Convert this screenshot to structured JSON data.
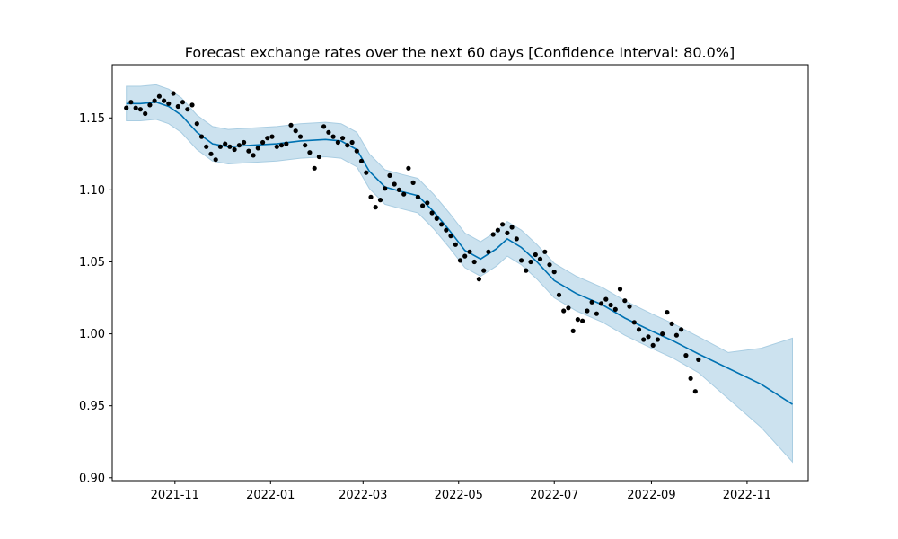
{
  "chart_data": {
    "type": "line",
    "title": "Forecast exchange rates over the next 60 days [Confidence Interval: 80.0%]",
    "xlabel": "",
    "ylabel": "",
    "x_range": [
      "2021-09-22",
      "2022-12-10"
    ],
    "ylim": [
      0.898,
      1.187
    ],
    "grid": false,
    "legend": "none",
    "x_ticks": [
      "2021-11",
      "2022-01",
      "2022-03",
      "2022-05",
      "2022-07",
      "2022-09",
      "2022-11"
    ],
    "y_ticks": [
      "0.90",
      "0.95",
      "1.00",
      "1.05",
      "1.10",
      "1.15"
    ],
    "colors": {
      "forecast_line": "#0072B2",
      "interval_fill": "#cce2ef",
      "interval_edge": "#a9cde2",
      "observed": "#000000"
    },
    "series": [
      {
        "type": "line",
        "x": [
          "2021-10-01",
          "2021-10-10",
          "2021-10-20",
          "2021-10-28",
          "2021-11-05",
          "2021-11-15",
          "2021-11-25",
          "2021-12-05",
          "2021-12-20",
          "2022-01-05",
          "2022-01-20",
          "2022-02-05",
          "2022-02-15",
          "2022-02-25",
          "2022-03-05",
          "2022-03-15",
          "2022-03-25",
          "2022-04-05",
          "2022-04-15",
          "2022-04-25",
          "2022-05-05",
          "2022-05-15",
          "2022-05-25",
          "2022-06-01",
          "2022-06-10",
          "2022-06-20",
          "2022-07-01",
          "2022-07-15",
          "2022-08-01",
          "2022-08-15",
          "2022-09-01",
          "2022-09-15",
          "2022-10-01",
          "2022-10-20",
          "2022-11-10",
          "2022-11-30"
        ],
        "y": [
          1.16,
          1.16,
          1.161,
          1.158,
          1.152,
          1.14,
          1.132,
          1.13,
          1.131,
          1.132,
          1.134,
          1.135,
          1.134,
          1.128,
          1.113,
          1.102,
          1.099,
          1.096,
          1.085,
          1.072,
          1.058,
          1.052,
          1.059,
          1.066,
          1.06,
          1.05,
          1.037,
          1.028,
          1.02,
          1.011,
          1.002,
          0.995,
          0.986,
          0.976,
          0.965,
          0.951
        ]
      },
      {
        "type": "band",
        "x": [
          "2021-10-01",
          "2021-10-10",
          "2021-10-20",
          "2021-10-28",
          "2021-11-05",
          "2021-11-15",
          "2021-11-25",
          "2021-12-05",
          "2021-12-20",
          "2022-01-05",
          "2022-01-20",
          "2022-02-05",
          "2022-02-15",
          "2022-02-25",
          "2022-03-05",
          "2022-03-15",
          "2022-03-25",
          "2022-04-05",
          "2022-04-15",
          "2022-04-25",
          "2022-05-05",
          "2022-05-15",
          "2022-05-25",
          "2022-06-01",
          "2022-06-10",
          "2022-06-20",
          "2022-07-01",
          "2022-07-15",
          "2022-08-01",
          "2022-08-15",
          "2022-09-01",
          "2022-09-15",
          "2022-10-01",
          "2022-10-20",
          "2022-11-10",
          "2022-11-30"
        ],
        "lower": [
          1.148,
          1.148,
          1.149,
          1.146,
          1.14,
          1.128,
          1.12,
          1.118,
          1.119,
          1.12,
          1.122,
          1.123,
          1.122,
          1.116,
          1.101,
          1.09,
          1.087,
          1.084,
          1.073,
          1.06,
          1.046,
          1.04,
          1.047,
          1.054,
          1.048,
          1.038,
          1.025,
          1.016,
          1.008,
          0.999,
          0.99,
          0.983,
          0.973,
          0.955,
          0.935,
          0.911
        ],
        "upper": [
          1.172,
          1.172,
          1.173,
          1.17,
          1.164,
          1.152,
          1.144,
          1.142,
          1.143,
          1.144,
          1.146,
          1.147,
          1.146,
          1.14,
          1.125,
          1.114,
          1.111,
          1.108,
          1.097,
          1.084,
          1.07,
          1.064,
          1.071,
          1.078,
          1.072,
          1.062,
          1.049,
          1.04,
          1.032,
          1.023,
          1.014,
          1.007,
          0.998,
          0.987,
          0.99,
          0.997
        ]
      },
      {
        "type": "scatter",
        "x": [
          "2021-10-01",
          "2021-10-04",
          "2021-10-07",
          "2021-10-10",
          "2021-10-13",
          "2021-10-16",
          "2021-10-19",
          "2021-10-22",
          "2021-10-25",
          "2021-10-28",
          "2021-10-31",
          "2021-11-03",
          "2021-11-06",
          "2021-11-09",
          "2021-11-12",
          "2021-11-15",
          "2021-11-18",
          "2021-11-21",
          "2021-11-24",
          "2021-11-27",
          "2021-11-30",
          "2021-12-03",
          "2021-12-06",
          "2021-12-09",
          "2021-12-12",
          "2021-12-15",
          "2021-12-18",
          "2021-12-21",
          "2021-12-24",
          "2021-12-27",
          "2021-12-30",
          "2022-01-02",
          "2022-01-05",
          "2022-01-08",
          "2022-01-11",
          "2022-01-14",
          "2022-01-17",
          "2022-01-20",
          "2022-01-23",
          "2022-01-26",
          "2022-01-29",
          "2022-02-01",
          "2022-02-04",
          "2022-02-07",
          "2022-02-10",
          "2022-02-13",
          "2022-02-16",
          "2022-02-19",
          "2022-02-22",
          "2022-02-25",
          "2022-02-28",
          "2022-03-03",
          "2022-03-06",
          "2022-03-09",
          "2022-03-12",
          "2022-03-15",
          "2022-03-18",
          "2022-03-21",
          "2022-03-24",
          "2022-03-27",
          "2022-03-30",
          "2022-04-02",
          "2022-04-05",
          "2022-04-08",
          "2022-04-11",
          "2022-04-14",
          "2022-04-17",
          "2022-04-20",
          "2022-04-23",
          "2022-04-26",
          "2022-04-29",
          "2022-05-02",
          "2022-05-05",
          "2022-05-08",
          "2022-05-11",
          "2022-05-14",
          "2022-05-17",
          "2022-05-20",
          "2022-05-23",
          "2022-05-26",
          "2022-05-29",
          "2022-06-01",
          "2022-06-04",
          "2022-06-07",
          "2022-06-10",
          "2022-06-13",
          "2022-06-16",
          "2022-06-19",
          "2022-06-22",
          "2022-06-25",
          "2022-06-28",
          "2022-07-01",
          "2022-07-04",
          "2022-07-07",
          "2022-07-10",
          "2022-07-13",
          "2022-07-16",
          "2022-07-19",
          "2022-07-22",
          "2022-07-25",
          "2022-07-28",
          "2022-07-31",
          "2022-08-03",
          "2022-08-06",
          "2022-08-09",
          "2022-08-12",
          "2022-08-15",
          "2022-08-18",
          "2022-08-21",
          "2022-08-24",
          "2022-08-27",
          "2022-08-30",
          "2022-09-02",
          "2022-09-05",
          "2022-09-08",
          "2022-09-11",
          "2022-09-14",
          "2022-09-17",
          "2022-09-20",
          "2022-09-23",
          "2022-09-26",
          "2022-09-29",
          "2022-10-01"
        ],
        "y": [
          1.157,
          1.161,
          1.157,
          1.156,
          1.153,
          1.159,
          1.162,
          1.165,
          1.162,
          1.16,
          1.167,
          1.158,
          1.161,
          1.156,
          1.159,
          1.146,
          1.137,
          1.13,
          1.125,
          1.121,
          1.13,
          1.132,
          1.13,
          1.128,
          1.131,
          1.133,
          1.127,
          1.124,
          1.129,
          1.133,
          1.136,
          1.137,
          1.13,
          1.131,
          1.132,
          1.145,
          1.141,
          1.137,
          1.131,
          1.126,
          1.115,
          1.123,
          1.144,
          1.14,
          1.137,
          1.133,
          1.136,
          1.131,
          1.133,
          1.127,
          1.12,
          1.112,
          1.095,
          1.088,
          1.093,
          1.101,
          1.11,
          1.104,
          1.1,
          1.097,
          1.115,
          1.105,
          1.095,
          1.089,
          1.091,
          1.084,
          1.08,
          1.076,
          1.072,
          1.068,
          1.062,
          1.051,
          1.054,
          1.057,
          1.05,
          1.038,
          1.044,
          1.057,
          1.069,
          1.072,
          1.076,
          1.07,
          1.074,
          1.066,
          1.051,
          1.044,
          1.05,
          1.055,
          1.052,
          1.057,
          1.048,
          1.043,
          1.027,
          1.016,
          1.018,
          1.002,
          1.01,
          1.009,
          1.016,
          1.022,
          1.014,
          1.021,
          1.024,
          1.02,
          1.017,
          1.031,
          1.023,
          1.019,
          1.008,
          1.003,
          0.996,
          0.998,
          0.992,
          0.996,
          1.0,
          1.015,
          1.007,
          0.999,
          1.003,
          0.985,
          0.969,
          0.96,
          0.982
        ]
      }
    ]
  }
}
